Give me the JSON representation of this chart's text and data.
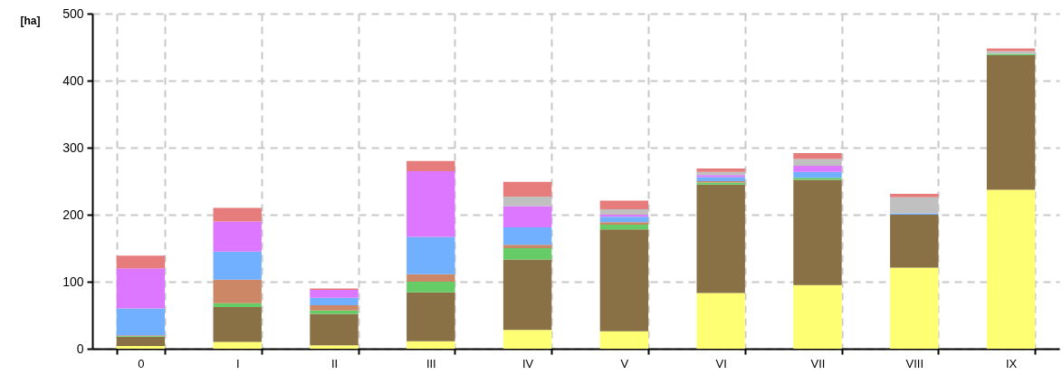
{
  "chart_data": {
    "type": "bar",
    "ylabel": "[ha]",
    "categories": [
      "0",
      "I",
      "II",
      "III",
      "IV",
      "V",
      "VI",
      "VII",
      "VIII",
      "IX"
    ],
    "stacked": true,
    "ylim": [
      0,
      500
    ],
    "yticks": [
      0,
      100,
      200,
      300,
      400,
      500
    ],
    "grid": true,
    "series": [
      {
        "color": "#ffff73",
        "values": [
          4,
          10,
          5,
          11,
          28,
          26,
          83,
          95,
          121,
          237
        ]
      },
      {
        "color": "#8a7045",
        "values": [
          14,
          52,
          47,
          73,
          105,
          152,
          162,
          157,
          79,
          201
        ]
      },
      {
        "color": "#66cc66",
        "values": [
          1,
          6,
          5,
          16,
          17,
          7,
          3,
          3,
          0,
          2
        ]
      },
      {
        "color": "#cc8866",
        "values": [
          1,
          35,
          8,
          11,
          5,
          4,
          2,
          0,
          0,
          0
        ]
      },
      {
        "color": "#70b0ff",
        "values": [
          40,
          42,
          11,
          56,
          26,
          8,
          6,
          9,
          2,
          null
        ]
      },
      {
        "color": "#dd77ff",
        "values": [
          60,
          45,
          12,
          98,
          32,
          3,
          3,
          9,
          0,
          0
        ]
      },
      {
        "color": "#c0c0c0",
        "values": [
          0,
          0,
          0,
          0,
          14,
          8,
          5,
          10,
          24,
          4
        ]
      },
      {
        "color": "#e67c7c",
        "values": [
          19,
          20,
          2,
          15,
          22,
          13,
          5,
          9,
          5,
          4
        ]
      }
    ]
  }
}
